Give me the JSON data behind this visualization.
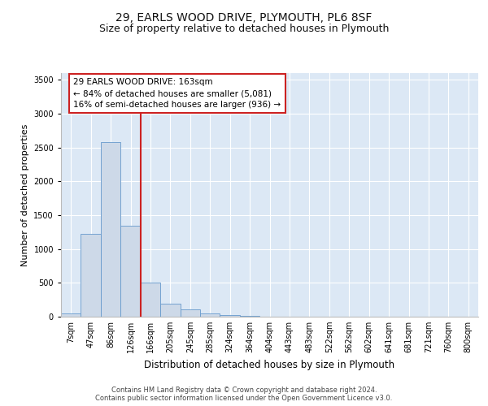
{
  "title_line1": "29, EARLS WOOD DRIVE, PLYMOUTH, PL6 8SF",
  "title_line2": "Size of property relative to detached houses in Plymouth",
  "xlabel": "Distribution of detached houses by size in Plymouth",
  "ylabel": "Number of detached properties",
  "categories": [
    "7sqm",
    "47sqm",
    "86sqm",
    "126sqm",
    "166sqm",
    "205sqm",
    "245sqm",
    "285sqm",
    "324sqm",
    "364sqm",
    "404sqm",
    "443sqm",
    "483sqm",
    "522sqm",
    "562sqm",
    "602sqm",
    "641sqm",
    "681sqm",
    "721sqm",
    "760sqm",
    "800sqm"
  ],
  "bar_heights": [
    50,
    1220,
    2580,
    1350,
    500,
    190,
    110,
    50,
    30,
    10,
    5,
    2,
    1,
    0,
    0,
    0,
    0,
    0,
    0,
    0,
    0
  ],
  "bar_color": "#cdd9e8",
  "bar_edge_color": "#6699cc",
  "vline_color": "#cc2222",
  "vline_x_index": 4,
  "annotation_text": "29 EARLS WOOD DRIVE: 163sqm\n← 84% of detached houses are smaller (5,081)\n16% of semi-detached houses are larger (936) →",
  "annotation_box_color": "#ffffff",
  "annotation_box_edge": "#cc2222",
  "ylim": [
    0,
    3600
  ],
  "yticks": [
    0,
    500,
    1000,
    1500,
    2000,
    2500,
    3000,
    3500
  ],
  "background_color": "#dce8f5",
  "footer_line1": "Contains HM Land Registry data © Crown copyright and database right 2024.",
  "footer_line2": "Contains public sector information licensed under the Open Government Licence v3.0.",
  "title_fontsize": 10,
  "subtitle_fontsize": 9,
  "tick_fontsize": 7,
  "ylabel_fontsize": 8,
  "xlabel_fontsize": 8.5,
  "annotation_fontsize": 7.5
}
